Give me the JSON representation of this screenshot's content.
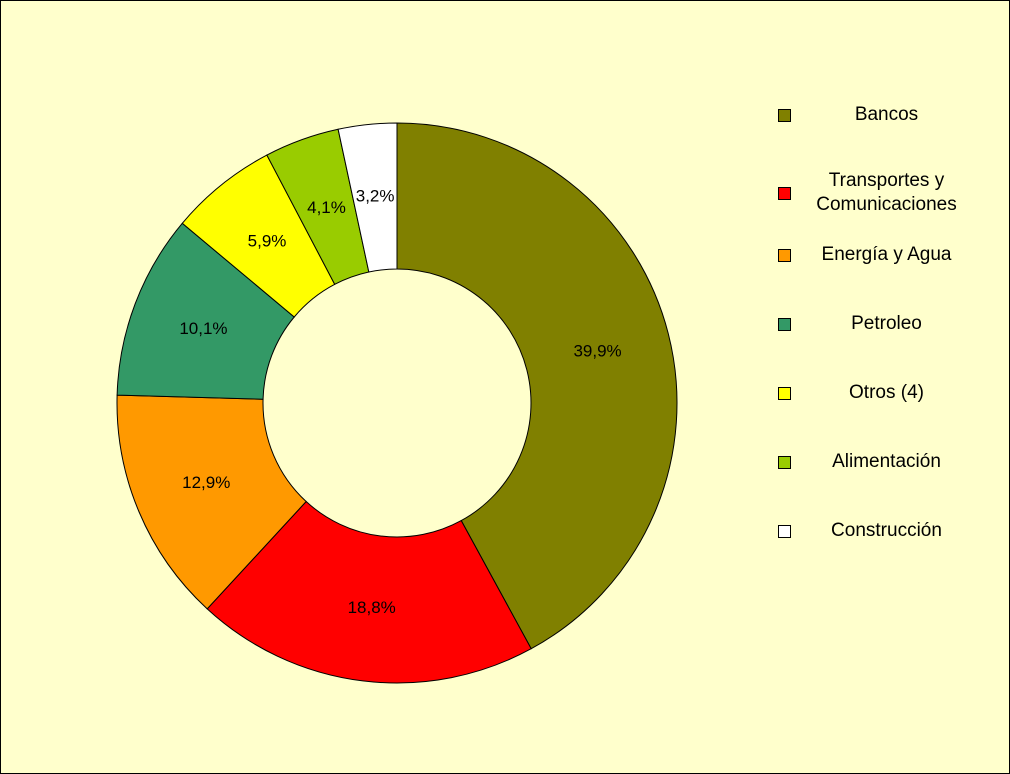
{
  "chart_data": {
    "type": "donut",
    "categories": [
      "Bancos",
      "Transportes y Comunicaciones",
      "Energía y Agua",
      "Petroleo",
      "Otros (4)",
      "Alimentación",
      "Construcción"
    ],
    "values": [
      39.9,
      18.8,
      12.9,
      10.1,
      5.9,
      4.1,
      3.2
    ],
    "value_labels": [
      "39,9%",
      "18,8%",
      "12,9%",
      "10,1%",
      "5,9%",
      "4,1%",
      "3,2%"
    ],
    "colors": [
      "#808000",
      "#ff0000",
      "#ff9900",
      "#339966",
      "#ffff00",
      "#99cc00",
      "#ffffff"
    ],
    "legend": "right"
  }
}
